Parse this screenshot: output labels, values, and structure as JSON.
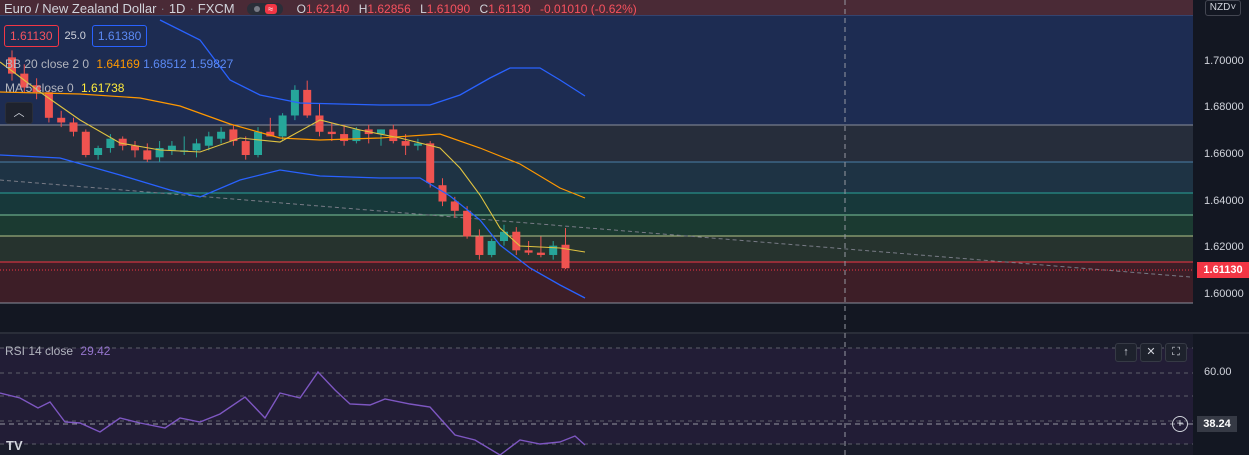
{
  "header": {
    "symbol": "Euro / New Zealand Dollar",
    "interval": "1D",
    "exchange": "FXCM",
    "ohlc": {
      "o_label": "O",
      "o": "1.62140",
      "h_label": "H",
      "h": "1.62856",
      "l_label": "L",
      "l": "1.61090",
      "c_label": "C",
      "c": "1.61130",
      "change": "-0.01010 (-0.62%)"
    }
  },
  "quick_trade": {
    "sell": "1.61130",
    "spread": "25.0",
    "buy": "1.61380"
  },
  "indicators": {
    "bb": {
      "name": "BB 20 close 2 0",
      "basis": "1.64169",
      "upper": "1.68512",
      "lower": "1.59827"
    },
    "ma": {
      "name": "MA 5 close 0",
      "value": "1.61738"
    },
    "rsi": {
      "name": "RSI 14 close",
      "value": "29.42"
    }
  },
  "price_axis": {
    "currency": "NZD",
    "ticks": [
      "1.70000",
      "1.68000",
      "1.66000",
      "1.64000",
      "1.62000",
      "1.60000"
    ],
    "last_price": "1.61130"
  },
  "rsi_axis": {
    "tick": "60.00",
    "crosshair_value": "38.24"
  },
  "colors": {
    "up": "#26a69a",
    "down": "#ef5350",
    "bb_band": "#2962ff",
    "bb_basis": "#ff9800",
    "ma": "#e0c341",
    "rsi": "#7e57c2",
    "background": "#131722"
  },
  "icons": {
    "collapse": "chevron-up-icon",
    "pane_up": "arrow-up-icon",
    "pane_close": "close-icon",
    "pane_max": "maximize-icon",
    "add": "plus-icon",
    "logo": "tradingview-logo"
  }
}
